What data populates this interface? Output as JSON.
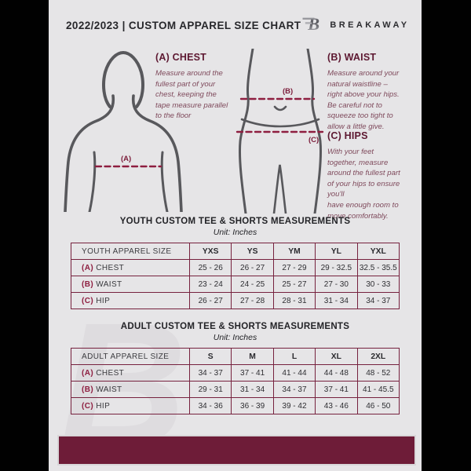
{
  "header": {
    "title": "2022/2023  |  CUSTOM APPAREL SIZE CHART",
    "brand": "BREAKAWAY",
    "logo_letter": "B"
  },
  "diagram": {
    "chest_label": "(A)",
    "waist_label": "(B)",
    "hips_label": "(C)",
    "measurements": [
      {
        "title": "(A) CHEST",
        "description": "Measure around the\nfullest part of your\nchest, keeping the\ntape measure parallel\nto the floor"
      },
      {
        "title": "(B) WAIST",
        "description": "Measure around your\nnatural waistline –\nright above your hips.\nBe careful not to\nsqueeze too tight to\nallow a little give."
      },
      {
        "title": "(C) HIPS",
        "description": "With your feet\ntogether, measure\naround the fullest part\nof your hips to ensure\nyou'll\nhave enough room to\nmove comfortably."
      }
    ]
  },
  "tables": [
    {
      "title": "YOUTH CUSTOM TEE & SHORTS MEASUREMENTS",
      "unit": "Unit: Inches",
      "size_label": "YOUTH APPAREL SIZE",
      "sizes": [
        "YXS",
        "YS",
        "YM",
        "YL",
        "YXL"
      ],
      "rows": [
        {
          "key": "(A)",
          "label": "CHEST",
          "values": [
            "25 - 26",
            "26 - 27",
            "27 - 29",
            "29 - 32.5",
            "32.5 - 35.5"
          ]
        },
        {
          "key": "(B)",
          "label": "WAIST",
          "values": [
            "23 - 24",
            "24 - 25",
            "25 - 27",
            "27 - 30",
            "30 - 33"
          ]
        },
        {
          "key": "(C)",
          "label": "HIP",
          "values": [
            "26 - 27",
            "27 - 28",
            "28 - 31",
            "31 - 34",
            "34 - 37"
          ]
        }
      ]
    },
    {
      "title": "ADULT CUSTOM TEE & SHORTS MEASUREMENTS",
      "unit": "Unit: Inches",
      "size_label": "ADULT APPAREL SIZE",
      "sizes": [
        "S",
        "M",
        "L",
        "XL",
        "2XL"
      ],
      "rows": [
        {
          "key": "(A)",
          "label": "CHEST",
          "values": [
            "34 - 37",
            "37 - 41",
            "41 - 44",
            "44 - 48",
            "48 - 52"
          ]
        },
        {
          "key": "(B)",
          "label": "WAIST",
          "values": [
            "29 - 31",
            "31 - 34",
            "34 - 37",
            "37 - 41",
            "41 - 45.5"
          ]
        },
        {
          "key": "(C)",
          "label": "HIP",
          "values": [
            "34 - 36",
            "36 - 39",
            "39 - 42",
            "43 - 46",
            "46 - 50"
          ]
        }
      ]
    }
  ],
  "colors": {
    "maroon_border": "#76213e",
    "maroon_footer": "#6e1c38",
    "maroon_key": "#8e1e40",
    "heading_maroon": "#5d1831",
    "description_text": "#7f4a5c",
    "content_background": "#e6e5e7",
    "pillarbox_black": "#010101",
    "figure_grey": "#58585c"
  }
}
